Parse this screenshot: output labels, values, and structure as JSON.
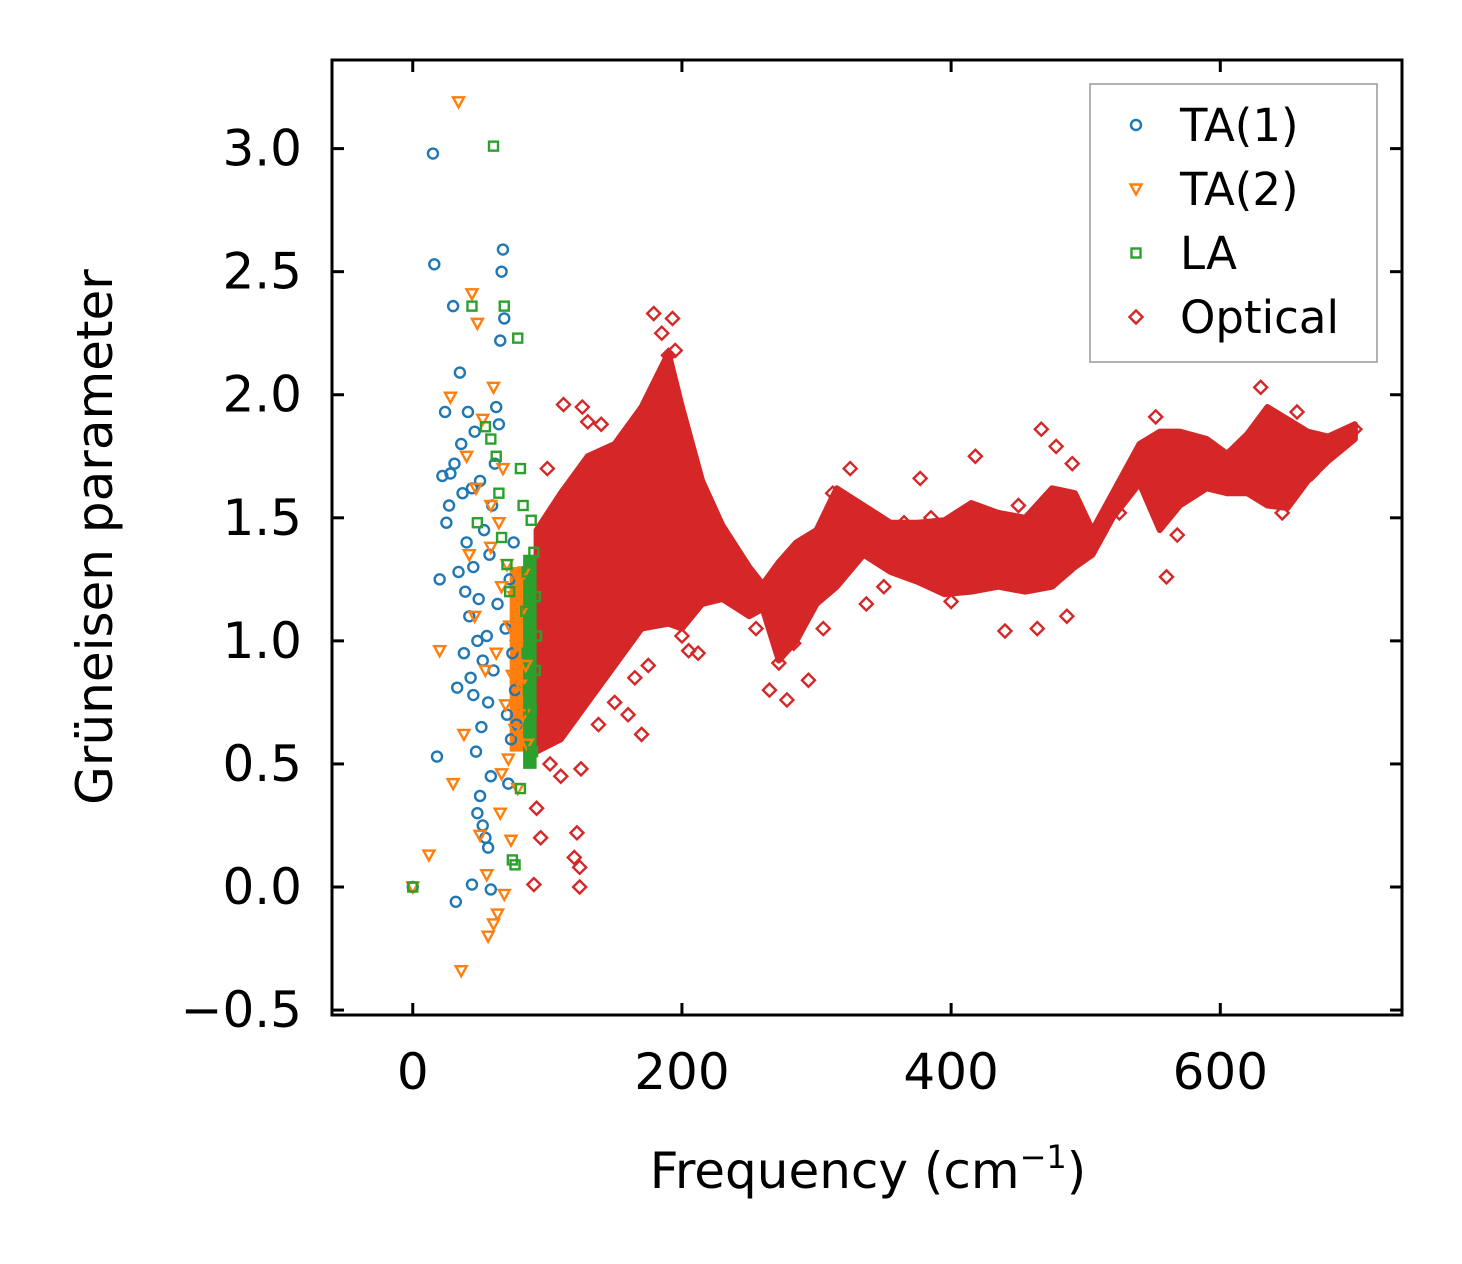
{
  "chart_data": {
    "type": "scatter",
    "title": "",
    "xlabel": "Frequency (cm",
    "xlabel_sup": "−1",
    "xlabel_end": ")",
    "ylabel": "Grüneisen parameter",
    "xlim": [
      -60,
      735
    ],
    "ylim": [
      -0.52,
      3.36
    ],
    "xticks": [
      0,
      200,
      400,
      600
    ],
    "xtick_labels": [
      "0",
      "200",
      "400",
      "600"
    ],
    "yticks": [
      -0.5,
      0.0,
      0.5,
      1.0,
      1.5,
      2.0,
      2.5,
      3.0
    ],
    "ytick_labels": [
      "−0.5",
      "0.0",
      "0.5",
      "1.0",
      "1.5",
      "2.0",
      "2.5",
      "3.0"
    ],
    "grid": false,
    "legend_position": "top-right",
    "series": [
      {
        "name": "TA(1)",
        "color": "#1f77b4",
        "marker": "circle",
        "points": [
          [
            0,
            0.0
          ],
          [
            15,
            2.98
          ],
          [
            16,
            2.53
          ],
          [
            18,
            0.53
          ],
          [
            20,
            1.25
          ],
          [
            22,
            1.67
          ],
          [
            24,
            1.93
          ],
          [
            25,
            1.48
          ],
          [
            27,
            1.55
          ],
          [
            28,
            1.68
          ],
          [
            30,
            2.36
          ],
          [
            31,
            1.72
          ],
          [
            32,
            -0.06
          ],
          [
            33,
            0.81
          ],
          [
            34,
            1.28
          ],
          [
            35,
            2.09
          ],
          [
            36,
            1.8
          ],
          [
            37,
            1.6
          ],
          [
            38,
            0.95
          ],
          [
            39,
            1.2
          ],
          [
            40,
            1.4
          ],
          [
            41,
            1.93
          ],
          [
            42,
            1.1
          ],
          [
            43,
            0.85
          ],
          [
            44,
            0.01
          ],
          [
            45,
            1.3
          ],
          [
            46,
            1.85
          ],
          [
            47,
            0.55
          ],
          [
            48,
            0.3
          ],
          [
            49,
            1.17
          ],
          [
            50,
            1.65
          ],
          [
            51,
            0.65
          ],
          [
            52,
            0.92
          ],
          [
            53,
            1.45
          ],
          [
            54,
            0.2
          ],
          [
            55,
            1.02
          ],
          [
            56,
            0.75
          ],
          [
            57,
            1.35
          ],
          [
            58,
            0.45
          ],
          [
            59,
            1.55
          ],
          [
            60,
            0.88
          ],
          [
            61,
            1.72
          ],
          [
            62,
            1.95
          ],
          [
            63,
            1.15
          ],
          [
            64,
            1.88
          ],
          [
            65,
            2.22
          ],
          [
            66,
            2.5
          ],
          [
            67,
            2.59
          ],
          [
            68,
            2.31
          ],
          [
            69,
            1.05
          ],
          [
            70,
            0.7
          ],
          [
            71,
            0.42
          ],
          [
            72,
            1.25
          ],
          [
            73,
            0.6
          ],
          [
            74,
            0.95
          ],
          [
            75,
            1.4
          ],
          [
            76,
            0.8
          ],
          [
            77,
            0.66
          ],
          [
            52,
            0.25
          ],
          [
            48,
            1.0
          ],
          [
            45,
            0.78
          ],
          [
            56,
            0.16
          ],
          [
            58,
            -0.01
          ],
          [
            44,
            1.62
          ],
          [
            50,
            0.37
          ]
        ]
      },
      {
        "name": "TA(2)",
        "color": "#ff7f0e",
        "marker": "triangle-down",
        "points": [
          [
            0,
            0.0
          ],
          [
            12,
            0.13
          ],
          [
            20,
            0.96
          ],
          [
            28,
            1.99
          ],
          [
            30,
            0.42
          ],
          [
            34,
            3.19
          ],
          [
            36,
            -0.34
          ],
          [
            38,
            0.62
          ],
          [
            40,
            1.75
          ],
          [
            42,
            1.35
          ],
          [
            44,
            2.41
          ],
          [
            46,
            1.1
          ],
          [
            48,
            2.29
          ],
          [
            50,
            0.21
          ],
          [
            52,
            1.9
          ],
          [
            54,
            0.88
          ],
          [
            56,
            -0.2
          ],
          [
            58,
            1.55
          ],
          [
            60,
            2.03
          ],
          [
            62,
            0.95
          ],
          [
            63,
            -0.11
          ],
          [
            64,
            1.48
          ],
          [
            65,
            0.3
          ],
          [
            66,
            1.22
          ],
          [
            67,
            1.7
          ],
          [
            68,
            -0.03
          ],
          [
            69,
            0.74
          ],
          [
            70,
            1.31
          ],
          [
            71,
            0.52
          ],
          [
            72,
            1.06
          ],
          [
            73,
            0.19
          ],
          [
            74,
            0.86
          ],
          [
            75,
            1.18
          ],
          [
            76,
            0.64
          ],
          [
            77,
            0.98
          ],
          [
            78,
            0.4
          ],
          [
            79,
            1.25
          ],
          [
            80,
            0.82
          ],
          [
            81,
            1.12
          ],
          [
            82,
            0.7
          ],
          [
            83,
            1.28
          ],
          [
            84,
            0.9
          ],
          [
            85,
            0.58
          ],
          [
            60,
            -0.15
          ],
          [
            55,
            0.05
          ],
          [
            47,
            1.62
          ],
          [
            58,
            1.38
          ],
          [
            66,
            0.46
          ]
        ]
      },
      {
        "name": "LA",
        "color": "#2ca02c",
        "marker": "square",
        "points": [
          [
            0,
            0.0
          ],
          [
            44,
            2.36
          ],
          [
            48,
            1.48
          ],
          [
            54,
            1.87
          ],
          [
            58,
            1.82
          ],
          [
            60,
            3.01
          ],
          [
            62,
            1.75
          ],
          [
            64,
            1.6
          ],
          [
            66,
            1.42
          ],
          [
            68,
            2.36
          ],
          [
            70,
            1.31
          ],
          [
            72,
            1.2
          ],
          [
            74,
            0.11
          ],
          [
            76,
            0.09
          ],
          [
            78,
            2.23
          ],
          [
            80,
            1.7
          ],
          [
            82,
            1.55
          ],
          [
            84,
            1.12
          ],
          [
            85,
            0.95
          ],
          [
            86,
            0.8
          ],
          [
            87,
            0.66
          ],
          [
            88,
            1.49
          ],
          [
            89,
            0.55
          ],
          [
            90,
            1.36
          ],
          [
            91,
            0.88
          ],
          [
            92,
            1.02
          ],
          [
            80,
            0.4
          ],
          [
            85,
            1.28
          ],
          [
            88,
            0.72
          ],
          [
            91,
            1.18
          ]
        ]
      },
      {
        "name": "Optical",
        "color": "#d62728",
        "marker": "diamond",
        "points": [
          [
            90,
            0.01
          ],
          [
            92,
            0.32
          ],
          [
            95,
            0.2
          ],
          [
            100,
            1.7
          ],
          [
            102,
            0.5
          ],
          [
            110,
            0.45
          ],
          [
            112,
            1.96
          ],
          [
            120,
            0.12
          ],
          [
            122,
            0.22
          ],
          [
            124,
            0.0
          ],
          [
            124,
            0.08
          ],
          [
            125,
            0.48
          ],
          [
            126,
            1.95
          ],
          [
            130,
            1.89
          ],
          [
            138,
            0.66
          ],
          [
            140,
            1.88
          ],
          [
            150,
            0.75
          ],
          [
            160,
            0.7
          ],
          [
            165,
            0.85
          ],
          [
            170,
            0.62
          ],
          [
            175,
            0.9
          ],
          [
            179,
            2.33
          ],
          [
            185,
            2.25
          ],
          [
            190,
            2.16
          ],
          [
            193,
            2.31
          ],
          [
            195,
            2.18
          ],
          [
            200,
            1.02
          ],
          [
            205,
            0.96
          ],
          [
            212,
            0.95
          ],
          [
            255,
            1.05
          ],
          [
            265,
            0.8
          ],
          [
            272,
            0.91
          ],
          [
            278,
            0.76
          ],
          [
            283,
            0.99
          ],
          [
            294,
            0.84
          ],
          [
            305,
            1.05
          ],
          [
            312,
            1.6
          ],
          [
            325,
            1.7
          ],
          [
            337,
            1.15
          ],
          [
            350,
            1.22
          ],
          [
            365,
            1.48
          ],
          [
            377,
            1.66
          ],
          [
            385,
            1.5
          ],
          [
            400,
            1.16
          ],
          [
            418,
            1.75
          ],
          [
            425,
            1.24
          ],
          [
            440,
            1.04
          ],
          [
            450,
            1.55
          ],
          [
            464,
            1.05
          ],
          [
            467,
            1.86
          ],
          [
            478,
            1.79
          ],
          [
            490,
            1.72
          ],
          [
            486,
            1.1
          ],
          [
            505,
            1.4
          ],
          [
            525,
            1.52
          ],
          [
            540,
            1.74
          ],
          [
            552,
            1.91
          ],
          [
            560,
            1.26
          ],
          [
            568,
            1.43
          ],
          [
            580,
            1.65
          ],
          [
            590,
            1.75
          ],
          [
            605,
            1.62
          ],
          [
            622,
            1.65
          ],
          [
            630,
            2.03
          ],
          [
            646,
            1.52
          ],
          [
            657,
            1.93
          ],
          [
            668,
            1.68
          ],
          [
            700,
            1.86
          ]
        ]
      }
    ],
    "optical_band_centerline": [
      [
        92,
        1.0
      ],
      [
        110,
        1.1
      ],
      [
        130,
        1.25
      ],
      [
        150,
        1.35
      ],
      [
        170,
        1.5
      ],
      [
        190,
        1.62
      ],
      [
        200,
        1.5
      ],
      [
        215,
        1.4
      ],
      [
        230,
        1.32
      ],
      [
        250,
        1.2
      ],
      [
        260,
        1.18
      ],
      [
        272,
        1.12
      ],
      [
        285,
        1.2
      ],
      [
        300,
        1.3
      ],
      [
        315,
        1.42
      ],
      [
        335,
        1.45
      ],
      [
        355,
        1.38
      ],
      [
        375,
        1.36
      ],
      [
        395,
        1.34
      ],
      [
        415,
        1.38
      ],
      [
        435,
        1.37
      ],
      [
        455,
        1.35
      ],
      [
        475,
        1.42
      ],
      [
        492,
        1.45
      ],
      [
        505,
        1.4
      ],
      [
        520,
        1.55
      ],
      [
        540,
        1.72
      ],
      [
        555,
        1.65
      ],
      [
        570,
        1.7
      ],
      [
        590,
        1.72
      ],
      [
        605,
        1.68
      ],
      [
        620,
        1.72
      ],
      [
        635,
        1.75
      ],
      [
        650,
        1.72
      ],
      [
        665,
        1.75
      ],
      [
        680,
        1.78
      ],
      [
        700,
        1.85
      ]
    ],
    "optical_band_halfwidth": [
      [
        92,
        0.45
      ],
      [
        110,
        0.5
      ],
      [
        130,
        0.5
      ],
      [
        150,
        0.45
      ],
      [
        170,
        0.45
      ],
      [
        190,
        0.55
      ],
      [
        200,
        0.45
      ],
      [
        215,
        0.25
      ],
      [
        230,
        0.15
      ],
      [
        250,
        0.1
      ],
      [
        260,
        0.05
      ],
      [
        272,
        0.2
      ],
      [
        285,
        0.2
      ],
      [
        300,
        0.15
      ],
      [
        315,
        0.2
      ],
      [
        335,
        0.1
      ],
      [
        355,
        0.1
      ],
      [
        375,
        0.12
      ],
      [
        395,
        0.15
      ],
      [
        415,
        0.18
      ],
      [
        435,
        0.15
      ],
      [
        455,
        0.15
      ],
      [
        475,
        0.2
      ],
      [
        492,
        0.15
      ],
      [
        505,
        0.05
      ],
      [
        520,
        0.05
      ],
      [
        540,
        0.08
      ],
      [
        555,
        0.2
      ],
      [
        570,
        0.15
      ],
      [
        590,
        0.1
      ],
      [
        605,
        0.08
      ],
      [
        620,
        0.12
      ],
      [
        635,
        0.2
      ],
      [
        650,
        0.18
      ],
      [
        665,
        0.1
      ],
      [
        680,
        0.05
      ],
      [
        700,
        0.03
      ]
    ]
  }
}
